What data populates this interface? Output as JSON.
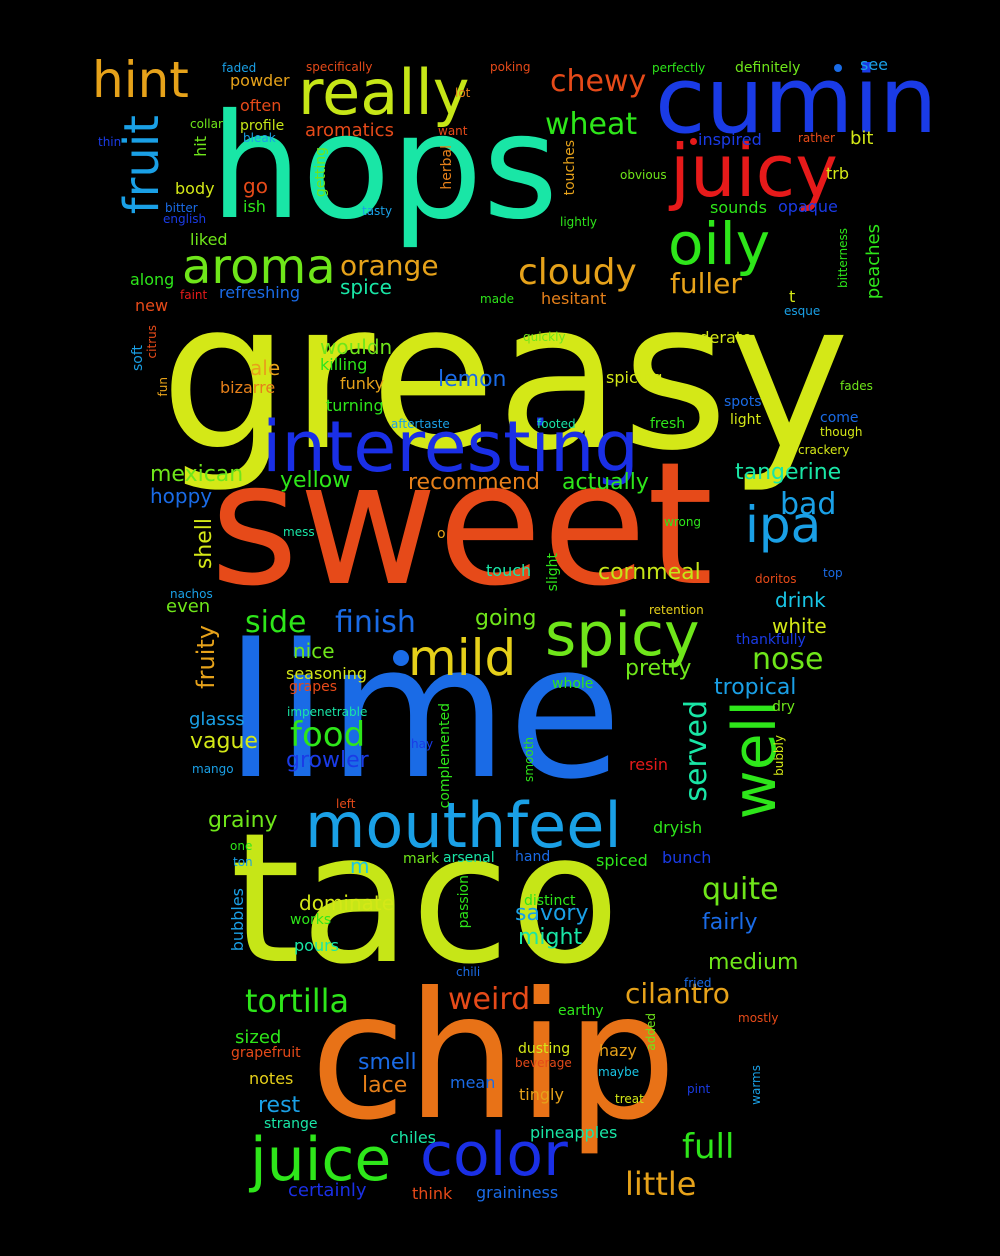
{
  "words": [
    {
      "text": "greasy",
      "color": "#d4e817"
    },
    {
      "text": "sweet",
      "color": "#e64a19"
    },
    {
      "text": "lime",
      "color": "#1a6be6"
    },
    {
      "text": "taco",
      "color": "#c6e617"
    },
    {
      "text": "chip",
      "color": "#e87217"
    },
    {
      "text": "hops",
      "color": "#19e6a6"
    },
    {
      "text": "cumin",
      "color": "#1a3be6"
    },
    {
      "text": "juicy",
      "color": "#e61a1a"
    },
    {
      "text": "interesting",
      "color": "#1a2fe6"
    },
    {
      "text": "mouthfeel",
      "color": "#1aa0e6"
    },
    {
      "text": "really",
      "color": "#c6e617"
    },
    {
      "text": "oily",
      "color": "#2ee61a"
    },
    {
      "text": "spicy",
      "color": "#6fe61a"
    },
    {
      "text": "aroma",
      "color": "#6fe61a"
    },
    {
      "text": "hint",
      "color": "#e6a21a"
    },
    {
      "text": "juice",
      "color": "#2ee61a"
    },
    {
      "text": "color",
      "color": "#1a2fe6"
    },
    {
      "text": "well",
      "color": "#2ee61a"
    },
    {
      "text": "mild",
      "color": "#e6d01a"
    },
    {
      "text": "ipa",
      "color": "#1aa0e6"
    },
    {
      "text": "fruit",
      "color": "#1aa0e6"
    },
    {
      "text": "cloudy",
      "color": "#e6a21a"
    },
    {
      "text": "food",
      "color": "#2ee61a"
    },
    {
      "text": "tortilla",
      "color": "#2ee61a"
    },
    {
      "text": "weird",
      "color": "#e64a19"
    },
    {
      "text": "cilantro",
      "color": "#e6a21a"
    },
    {
      "text": "full",
      "color": "#2ee61a"
    },
    {
      "text": "little",
      "color": "#e6a21a"
    },
    {
      "text": "nose",
      "color": "#6fe61a"
    },
    {
      "text": "quite",
      "color": "#6fe61a"
    },
    {
      "text": "orange",
      "color": "#e6a21a"
    },
    {
      "text": "fuller",
      "color": "#e6a21a"
    },
    {
      "text": "wheat",
      "color": "#2ee61a"
    },
    {
      "text": "chewy",
      "color": "#e64a19"
    },
    {
      "text": "finish",
      "color": "#1a6be6"
    },
    {
      "text": "side",
      "color": "#2ee61a"
    },
    {
      "text": "served",
      "color": "#19e6a6"
    },
    {
      "text": "tropical",
      "color": "#1aa0e6"
    },
    {
      "text": "bad",
      "color": "#1aa0e6"
    },
    {
      "text": "mexican",
      "color": "#6fe61a"
    },
    {
      "text": "tangerine",
      "color": "#19e6a6"
    },
    {
      "text": "recommend",
      "color": "#e6801a"
    },
    {
      "text": "yellow",
      "color": "#2ee61a"
    },
    {
      "text": "actually",
      "color": "#2ee61a"
    },
    {
      "text": "lemon",
      "color": "#1a6be6"
    },
    {
      "text": "cornmeal",
      "color": "#c6e617"
    },
    {
      "text": "drink",
      "color": "#19c6e6"
    },
    {
      "text": "white",
      "color": "#d4e817"
    },
    {
      "text": "pretty",
      "color": "#6fe61a"
    },
    {
      "text": "going",
      "color": "#6fe61a"
    },
    {
      "text": "smell",
      "color": "#1a6be6"
    },
    {
      "text": "lace",
      "color": "#e6801a"
    },
    {
      "text": "rest",
      "color": "#1aa0e6"
    },
    {
      "text": "certainly",
      "color": "#1a2fe6"
    },
    {
      "text": "graininess",
      "color": "#1a6be6"
    },
    {
      "text": "think",
      "color": "#e64a19"
    },
    {
      "text": "chiles",
      "color": "#19e6a6"
    },
    {
      "text": "pineapples",
      "color": "#19e6a6"
    },
    {
      "text": "tingly",
      "color": "#e6a21a"
    },
    {
      "text": "hazy",
      "color": "#e6a21a"
    },
    {
      "text": "mean",
      "color": "#1a6be6"
    },
    {
      "text": "medium",
      "color": "#6fe61a"
    },
    {
      "text": "fairly",
      "color": "#1a6be6"
    },
    {
      "text": "might",
      "color": "#19e6a6"
    },
    {
      "text": "savory",
      "color": "#1aa0e6"
    },
    {
      "text": "dominate",
      "color": "#d4e817"
    },
    {
      "text": "grainy",
      "color": "#6fe61a"
    },
    {
      "text": "vague",
      "color": "#d4e817"
    },
    {
      "text": "growler",
      "color": "#1a3be6"
    },
    {
      "text": "glasss",
      "color": "#1aa0e6"
    },
    {
      "text": "fruity",
      "color": "#e6a21a"
    },
    {
      "text": "nice",
      "color": "#6fe61a"
    },
    {
      "text": "seasoning",
      "color": "#d4e817"
    },
    {
      "text": "grapes",
      "color": "#e64a19"
    },
    {
      "text": "shell",
      "color": "#d4e817"
    },
    {
      "text": "even",
      "color": "#6fe61a"
    },
    {
      "text": "hoppy",
      "color": "#1a6be6"
    },
    {
      "text": "wouldn",
      "color": "#6fe61a"
    },
    {
      "text": "killing",
      "color": "#2ee61a"
    },
    {
      "text": "funky",
      "color": "#e6a21a"
    },
    {
      "text": "ale",
      "color": "#e6a21a"
    },
    {
      "text": "bizarre",
      "color": "#e6801a"
    },
    {
      "text": "turning",
      "color": "#2ee61a"
    },
    {
      "text": "spice",
      "color": "#19e6a6"
    },
    {
      "text": "refreshing",
      "color": "#1a6be6"
    },
    {
      "text": "go",
      "color": "#e64a19"
    },
    {
      "text": "ish",
      "color": "#2ee61a"
    },
    {
      "text": "body",
      "color": "#d4e817"
    },
    {
      "text": "liked",
      "color": "#6fe61a"
    },
    {
      "text": "along",
      "color": "#2ee61a"
    },
    {
      "text": "new",
      "color": "#e64a19"
    },
    {
      "text": "faint",
      "color": "#e61a1a"
    },
    {
      "text": "powder",
      "color": "#e6a21a"
    },
    {
      "text": "often",
      "color": "#e64a19"
    },
    {
      "text": "profile",
      "color": "#c6e617"
    },
    {
      "text": "aromatics",
      "color": "#e64a19"
    },
    {
      "text": "inspired",
      "color": "#1a3be6"
    },
    {
      "text": "bit",
      "color": "#d4e817"
    },
    {
      "text": "trb",
      "color": "#d4e817"
    },
    {
      "text": "sounds",
      "color": "#2ee61a"
    },
    {
      "text": "opaque",
      "color": "#1a3be6"
    },
    {
      "text": "peaches",
      "color": "#2ee61a"
    },
    {
      "text": "hesitant",
      "color": "#e6801a"
    },
    {
      "text": "moderate",
      "color": "#d4e817"
    },
    {
      "text": "spicing",
      "color": "#d4e817"
    },
    {
      "text": "spots",
      "color": "#1a6be6"
    },
    {
      "text": "light",
      "color": "#d4e817"
    },
    {
      "text": "come",
      "color": "#1a6be6"
    },
    {
      "text": "though",
      "color": "#d4e817"
    },
    {
      "text": "crackery",
      "color": "#d4e817"
    },
    {
      "text": "fades",
      "color": "#6fe61a"
    },
    {
      "text": "fresh",
      "color": "#2ee61a"
    },
    {
      "text": "footed",
      "color": "#19e6a6"
    },
    {
      "text": "aftertaste",
      "color": "#1aa0e6"
    },
    {
      "text": "see",
      "color": "#1aa0e6"
    },
    {
      "text": "definitely",
      "color": "#6fe61a"
    },
    {
      "text": "perfectly",
      "color": "#2ee61a"
    },
    {
      "text": "poking",
      "color": "#e64a19"
    },
    {
      "text": "specifically",
      "color": "#e64a19"
    },
    {
      "text": "faded",
      "color": "#1aa0e6"
    },
    {
      "text": "lot",
      "color": "#e6801a"
    },
    {
      "text": "want",
      "color": "#e64a19"
    },
    {
      "text": "collar",
      "color": "#6fe61a"
    },
    {
      "text": "bleak",
      "color": "#1aa0e6"
    },
    {
      "text": "thin",
      "color": "#1a3be6"
    },
    {
      "text": "hit",
      "color": "#6fe61a"
    },
    {
      "text": "bitter",
      "color": "#1a6be6"
    },
    {
      "text": "english",
      "color": "#1a3be6"
    },
    {
      "text": "getting",
      "color": "#6fe61a"
    },
    {
      "text": "herbal",
      "color": "#e6801a"
    },
    {
      "text": "tasty",
      "color": "#1aa0e6"
    },
    {
      "text": "touches",
      "color": "#e6a21a"
    },
    {
      "text": "obvious",
      "color": "#6fe61a"
    },
    {
      "text": "lightly",
      "color": "#2ee61a"
    },
    {
      "text": "rather",
      "color": "#e64a19"
    },
    {
      "text": "bitterness",
      "color": "#2ee61a"
    },
    {
      "text": "t",
      "color": "#d4e817"
    },
    {
      "text": "esque",
      "color": "#1aa0e6"
    },
    {
      "text": "made",
      "color": "#2ee61a"
    },
    {
      "text": "quickly",
      "color": "#6fe61a"
    },
    {
      "text": "soft",
      "color": "#1aa0e6"
    },
    {
      "text": "citrus",
      "color": "#e64a19"
    },
    {
      "text": "fun",
      "color": "#e6a21a"
    },
    {
      "text": "wrong",
      "color": "#2ee61a"
    },
    {
      "text": "mess",
      "color": "#19e6a6"
    },
    {
      "text": "o",
      "color": "#e6a21a"
    },
    {
      "text": "touch",
      "color": "#19e6a6"
    },
    {
      "text": "slight",
      "color": "#2ee61a"
    },
    {
      "text": "doritos",
      "color": "#e64a19"
    },
    {
      "text": "top",
      "color": "#1a6be6"
    },
    {
      "text": "retention",
      "color": "#e6d01a"
    },
    {
      "text": "thankfully",
      "color": "#1a3be6"
    },
    {
      "text": "nachos",
      "color": "#1aa0e6"
    },
    {
      "text": "whole",
      "color": "#2ee61a"
    },
    {
      "text": "impenetrable",
      "color": "#19e6a6"
    },
    {
      "text": "complemented",
      "color": "#2ee61a"
    },
    {
      "text": "dry",
      "color": "#6fe61a"
    },
    {
      "text": "bubbly",
      "color": "#d4e817"
    },
    {
      "text": "hay",
      "color": "#1a3be6"
    },
    {
      "text": "smooth",
      "color": "#2ee61a"
    },
    {
      "text": "resin",
      "color": "#e61a1a"
    },
    {
      "text": "mango",
      "color": "#1aa0e6"
    },
    {
      "text": "left",
      "color": "#e64a19"
    },
    {
      "text": "dryish",
      "color": "#2ee61a"
    },
    {
      "text": "one",
      "color": "#2ee61a"
    },
    {
      "text": "ton",
      "color": "#1aa0e6"
    },
    {
      "text": "m",
      "color": "#19c6e6"
    },
    {
      "text": "mark",
      "color": "#6fe61a"
    },
    {
      "text": "arsenal",
      "color": "#19e6a6"
    },
    {
      "text": "hand",
      "color": "#1a6be6"
    },
    {
      "text": "spiced",
      "color": "#2ee61a"
    },
    {
      "text": "bunch",
      "color": "#1a3be6"
    },
    {
      "text": "passion",
      "color": "#2ee61a"
    },
    {
      "text": "distinct",
      "color": "#2ee61a"
    },
    {
      "text": "bubbles",
      "color": "#1aa0e6"
    },
    {
      "text": "works",
      "color": "#2ee61a"
    },
    {
      "text": "pours",
      "color": "#19e6a6"
    },
    {
      "text": "chili",
      "color": "#1a6be6"
    },
    {
      "text": "fried",
      "color": "#1a6be6"
    },
    {
      "text": "earthy",
      "color": "#2ee61a"
    },
    {
      "text": "mostly",
      "color": "#e64a19"
    },
    {
      "text": "added",
      "color": "#6fe61a"
    },
    {
      "text": "dusting",
      "color": "#d4e817"
    },
    {
      "text": "beverage",
      "color": "#e64a19"
    },
    {
      "text": "maybe",
      "color": "#19c6e6"
    },
    {
      "text": "warms",
      "color": "#1aa0e6"
    },
    {
      "text": "pint",
      "color": "#1a3be6"
    },
    {
      "text": "treat",
      "color": "#d4e817"
    },
    {
      "text": "sized",
      "color": "#2ee61a"
    },
    {
      "text": "grapefruit",
      "color": "#e64a19"
    },
    {
      "text": "notes",
      "color": "#e6d01a"
    },
    {
      "text": "strange",
      "color": "#19e6a6"
    }
  ],
  "dots": [
    {
      "name": "dot-a",
      "color": "#1a6be6"
    },
    {
      "name": "dot-b",
      "color": "#1a6be6"
    },
    {
      "name": "dot-c",
      "color": "#e61a1a"
    }
  ]
}
